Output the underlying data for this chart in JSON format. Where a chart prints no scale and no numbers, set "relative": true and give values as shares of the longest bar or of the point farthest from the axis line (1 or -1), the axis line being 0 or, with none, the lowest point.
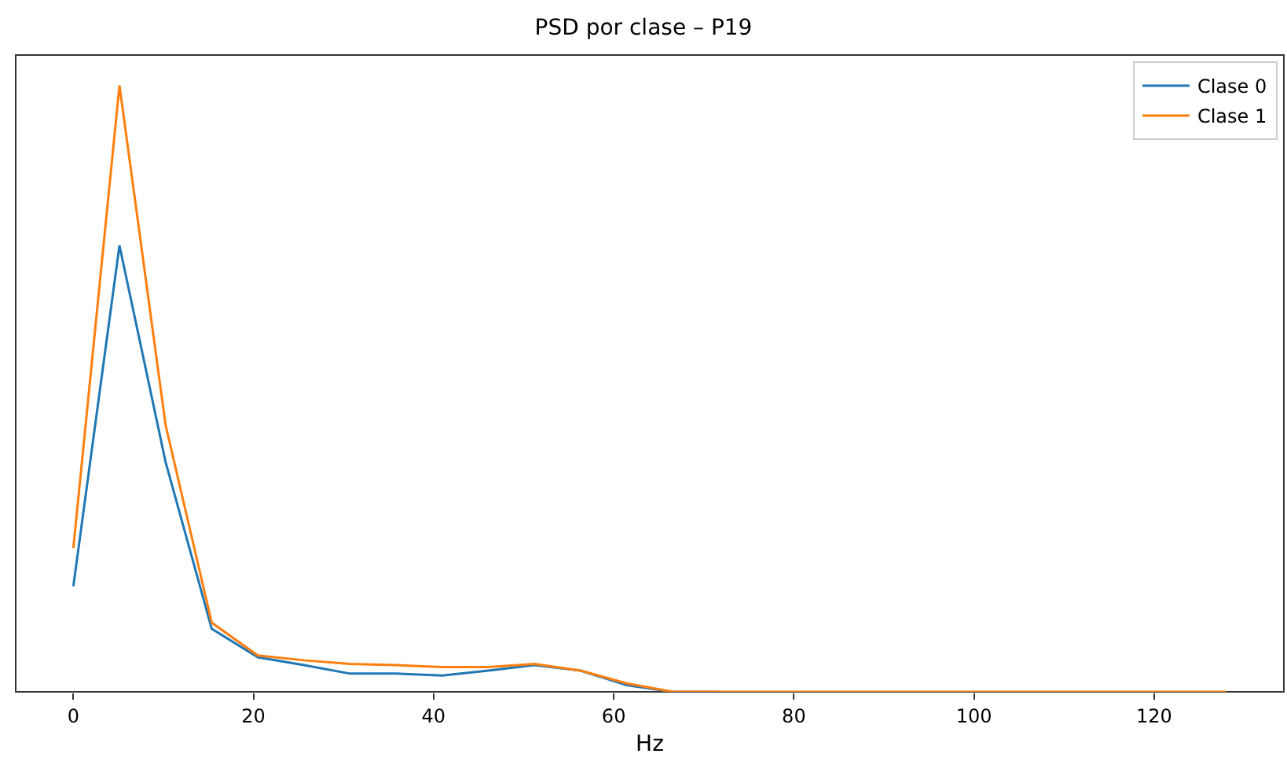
{
  "chart_data": {
    "type": "line",
    "title": "PSD por clase – P19",
    "xlabel": "Hz",
    "relative": true,
    "x": [
      0,
      5.12,
      10.24,
      15.36,
      20.48,
      25.6,
      30.72,
      35.84,
      40.96,
      46.08,
      51.2,
      56.32,
      61.44,
      66.56,
      71.68,
      76.8,
      81.92,
      87.04,
      92.16,
      97.28,
      102.4,
      107.52,
      112.64,
      117.76,
      122.88,
      128
    ],
    "xlim": [
      -6.4,
      134.4
    ],
    "xticks": [
      0,
      20,
      40,
      60,
      80,
      100,
      120
    ],
    "series": [
      {
        "name": "Clase 0",
        "color": "#1f77b4",
        "values": [
          0.174,
          0.736,
          0.379,
          0.104,
          0.057,
          0.044,
          0.03,
          0.03,
          0.027,
          0.035,
          0.044,
          0.035,
          0.011,
          0,
          0,
          null,
          null,
          null,
          null,
          null,
          null,
          null,
          null,
          null,
          null,
          null
        ]
      },
      {
        "name": "Clase 1",
        "color": "#ff7f0e",
        "values": [
          0.237,
          1,
          0.44,
          0.114,
          0.06,
          0.052,
          0.046,
          0.044,
          0.041,
          0.041,
          0.046,
          0.035,
          0.014,
          0,
          0,
          0,
          0,
          0,
          0,
          0,
          0,
          0,
          0,
          0,
          0,
          0
        ]
      }
    ],
    "legend": "top right",
    "grid": false
  }
}
